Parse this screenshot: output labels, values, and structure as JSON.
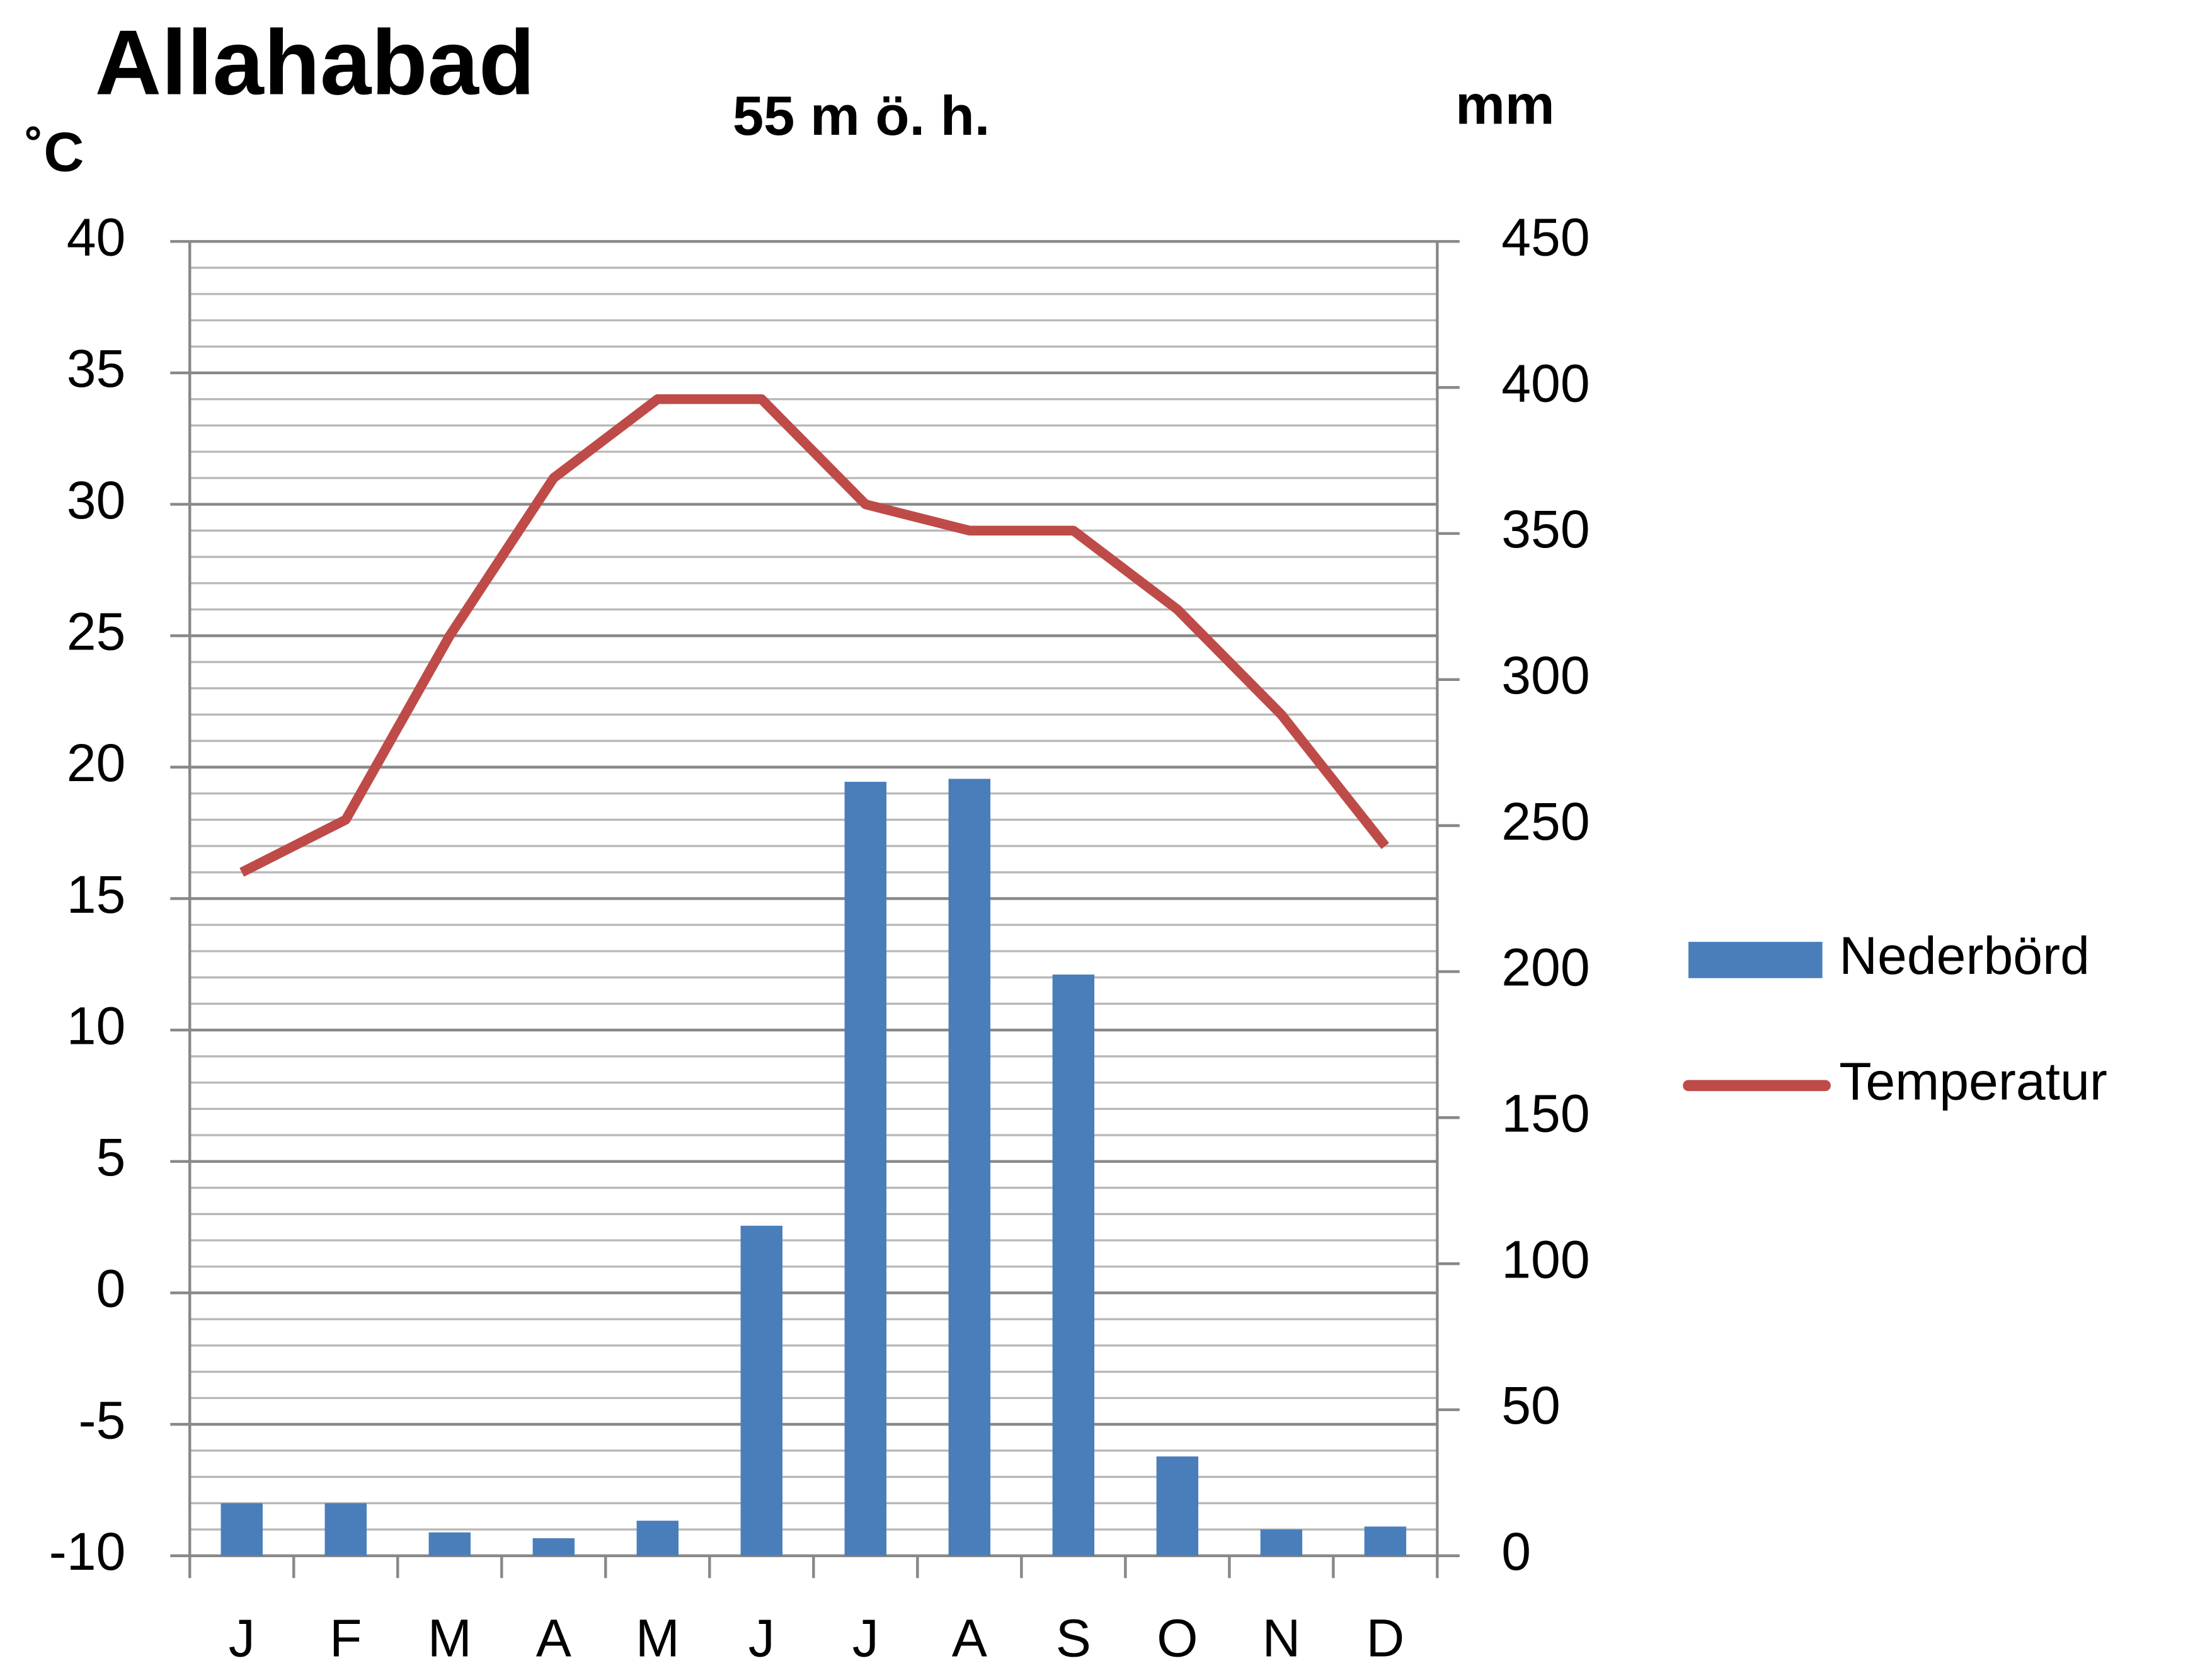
{
  "chart_data": {
    "type": "climate",
    "title": "Allahabad",
    "subtitle": "55 m ö. h.",
    "y_label": "˚C",
    "y2_label": "mm",
    "categories": [
      "J",
      "F",
      "M",
      "A",
      "M",
      "J",
      "J",
      "A",
      "S",
      "O",
      "N",
      "D"
    ],
    "series": [
      {
        "name": "Nederbörd",
        "type": "bar",
        "axis": "y2",
        "color": "#4a7ebb",
        "values": [
          18,
          18,
          8,
          6,
          12,
          113,
          265,
          266,
          199,
          34,
          9,
          10
        ]
      },
      {
        "name": "Temperatur",
        "type": "line",
        "color": "#be4b48",
        "values": [
          16,
          18,
          25,
          31,
          34,
          34,
          30,
          29,
          29,
          26,
          22,
          17
        ]
      }
    ],
    "ylim": [
      -10,
      40
    ],
    "yticks": [
      -10,
      -5,
      0,
      5,
      10,
      15,
      20,
      25,
      30,
      35,
      40
    ],
    "y2lim": [
      0,
      450
    ],
    "y2ticks": [
      0,
      50,
      100,
      150,
      200,
      250,
      300,
      350,
      400,
      450
    ],
    "grid": true,
    "minor_grid": true,
    "legend": "right"
  }
}
